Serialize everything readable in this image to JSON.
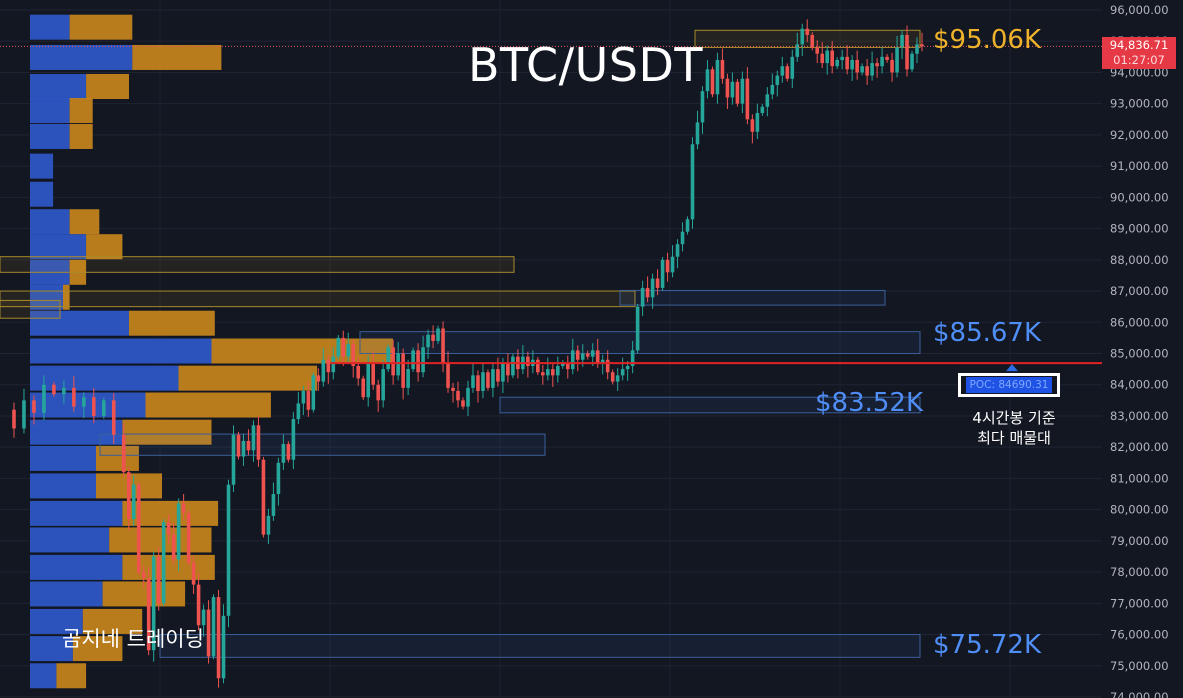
{
  "chart_data": {
    "type": "candlestick",
    "title": "BTC/USDT",
    "ylim": [
      73800,
      96200
    ],
    "y_ticks": [
      96000,
      95000,
      94000,
      93000,
      92000,
      91000,
      90000,
      89000,
      88000,
      87000,
      86000,
      85000,
      84000,
      83000,
      82000,
      81000,
      80000,
      79000,
      78000,
      77000,
      76000,
      75000,
      74000
    ],
    "y_tick_labels": [
      "96,000.00",
      "95,000.00",
      "94,000.00",
      "93,000.00",
      "92,000.00",
      "91,000.00",
      "90,000.00",
      "89,000.00",
      "88,000.00",
      "87,000.00",
      "86,000.00",
      "85,000.00",
      "84,000.00",
      "83,000.00",
      "82,000.00",
      "81,000.00",
      "80,000.00",
      "79,000.00",
      "78,000.00",
      "77,000.00",
      "76,000.00",
      "75,000.00",
      "74,000.00"
    ],
    "price_path": [
      [
        0,
        83200
      ],
      [
        10,
        82600
      ],
      [
        20,
        83500
      ],
      [
        30,
        83100
      ],
      [
        40,
        84000
      ],
      [
        50,
        83700
      ],
      [
        60,
        83900
      ],
      [
        70,
        83300
      ],
      [
        80,
        83600
      ],
      [
        90,
        83000
      ],
      [
        100,
        83500
      ],
      [
        110,
        82400
      ],
      [
        120,
        81200
      ],
      [
        125,
        79700
      ],
      [
        130,
        80800
      ],
      [
        135,
        78000
      ],
      [
        140,
        77800
      ],
      [
        145,
        75500
      ],
      [
        150,
        78500
      ],
      [
        155,
        77000
      ],
      [
        160,
        79600
      ],
      [
        165,
        79200
      ],
      [
        170,
        78400
      ],
      [
        175,
        80200
      ],
      [
        180,
        79900
      ],
      [
        185,
        78300
      ],
      [
        190,
        77600
      ],
      [
        195,
        76300
      ],
      [
        200,
        76800
      ],
      [
        205,
        75300
      ],
      [
        210,
        77200
      ],
      [
        215,
        74600
      ],
      [
        220,
        76600
      ],
      [
        225,
        80800
      ],
      [
        230,
        82400
      ],
      [
        235,
        81700
      ],
      [
        240,
        82200
      ],
      [
        245,
        81900
      ],
      [
        250,
        82700
      ],
      [
        255,
        81600
      ],
      [
        260,
        79200
      ],
      [
        265,
        79800
      ],
      [
        270,
        80500
      ],
      [
        275,
        81500
      ],
      [
        280,
        82100
      ],
      [
        285,
        81600
      ],
      [
        290,
        82900
      ],
      [
        295,
        83400
      ],
      [
        300,
        83800
      ],
      [
        305,
        83200
      ],
      [
        310,
        84300
      ],
      [
        315,
        84100
      ],
      [
        320,
        84800
      ],
      [
        325,
        84400
      ],
      [
        330,
        84900
      ],
      [
        335,
        85500
      ],
      [
        340,
        84900
      ],
      [
        345,
        85300
      ],
      [
        350,
        84600
      ],
      [
        355,
        84200
      ],
      [
        360,
        83600
      ],
      [
        365,
        84700
      ],
      [
        370,
        84000
      ],
      [
        375,
        83500
      ],
      [
        380,
        84500
      ],
      [
        385,
        85200
      ],
      [
        390,
        84300
      ],
      [
        395,
        85000
      ],
      [
        400,
        83900
      ],
      [
        405,
        84500
      ],
      [
        410,
        85100
      ],
      [
        415,
        84400
      ],
      [
        420,
        85200
      ],
      [
        425,
        85600
      ],
      [
        430,
        85400
      ],
      [
        435,
        85800
      ],
      [
        440,
        84700
      ],
      [
        445,
        83900
      ],
      [
        450,
        83800
      ],
      [
        455,
        83500
      ],
      [
        460,
        83300
      ],
      [
        465,
        83900
      ],
      [
        470,
        84300
      ],
      [
        475,
        83800
      ],
      [
        480,
        84400
      ],
      [
        485,
        83900
      ],
      [
        490,
        84500
      ],
      [
        495,
        84100
      ],
      [
        500,
        84700
      ],
      [
        505,
        84300
      ],
      [
        510,
        84900
      ],
      [
        515,
        84500
      ],
      [
        520,
        84900
      ],
      [
        525,
        84600
      ],
      [
        530,
        84800
      ],
      [
        535,
        84400
      ],
      [
        540,
        84300
      ],
      [
        545,
        84500
      ],
      [
        550,
        84300
      ],
      [
        555,
        84600
      ],
      [
        560,
        84700
      ],
      [
        565,
        84500
      ],
      [
        570,
        85100
      ],
      [
        575,
        84800
      ],
      [
        580,
        85000
      ],
      [
        585,
        84900
      ],
      [
        590,
        85100
      ],
      [
        595,
        84700
      ],
      [
        600,
        84800
      ],
      [
        605,
        84400
      ],
      [
        610,
        84100
      ],
      [
        615,
        84300
      ],
      [
        620,
        84500
      ],
      [
        625,
        84600
      ],
      [
        630,
        85100
      ],
      [
        635,
        86500
      ],
      [
        640,
        87100
      ],
      [
        645,
        86800
      ],
      [
        650,
        87400
      ],
      [
        655,
        87100
      ],
      [
        660,
        88000
      ],
      [
        665,
        87600
      ],
      [
        670,
        88100
      ],
      [
        675,
        88500
      ],
      [
        680,
        88900
      ],
      [
        685,
        89300
      ],
      [
        690,
        91700
      ],
      [
        695,
        92400
      ],
      [
        700,
        93400
      ],
      [
        705,
        94100
      ],
      [
        710,
        93300
      ],
      [
        715,
        94400
      ],
      [
        720,
        93800
      ],
      [
        725,
        93200
      ],
      [
        730,
        93700
      ],
      [
        735,
        93000
      ],
      [
        740,
        93800
      ],
      [
        745,
        92500
      ],
      [
        750,
        92100
      ],
      [
        755,
        92700
      ],
      [
        760,
        92900
      ],
      [
        765,
        93300
      ],
      [
        770,
        93600
      ],
      [
        775,
        93900
      ],
      [
        780,
        94200
      ],
      [
        785,
        93800
      ],
      [
        790,
        94500
      ],
      [
        795,
        94900
      ],
      [
        800,
        95400
      ],
      [
        805,
        95200
      ],
      [
        810,
        94800
      ],
      [
        815,
        94600
      ],
      [
        820,
        94300
      ],
      [
        825,
        94700
      ],
      [
        830,
        94200
      ],
      [
        835,
        94400
      ],
      [
        840,
        94500
      ],
      [
        845,
        94100
      ],
      [
        850,
        94400
      ],
      [
        855,
        94000
      ],
      [
        860,
        94200
      ],
      [
        865,
        93900
      ],
      [
        870,
        94300
      ],
      [
        875,
        94200
      ],
      [
        880,
        94500
      ],
      [
        885,
        94400
      ],
      [
        890,
        94000
      ],
      [
        895,
        94800
      ],
      [
        900,
        95200
      ],
      [
        905,
        94100
      ],
      [
        910,
        94600
      ],
      [
        915,
        94900
      ],
      [
        920,
        94837
      ]
    ],
    "volume_profile": [
      [
        95450,
        0.12,
        0.19
      ],
      [
        94480,
        0.31,
        0.27
      ],
      [
        93550,
        0.17,
        0.13
      ],
      [
        92780,
        0.12,
        0.07
      ],
      [
        91950,
        0.12,
        0.07
      ],
      [
        91000,
        0.07,
        0.0
      ],
      [
        90100,
        0.07,
        0.0
      ],
      [
        89220,
        0.12,
        0.09
      ],
      [
        88420,
        0.17,
        0.11
      ],
      [
        87600,
        0.12,
        0.05
      ],
      [
        86800,
        0.1,
        0.02
      ],
      [
        85970,
        0.3,
        0.26
      ],
      [
        85080,
        0.55,
        0.55
      ],
      [
        84210,
        0.45,
        0.42
      ],
      [
        83350,
        0.35,
        0.38
      ],
      [
        82480,
        0.28,
        0.27
      ],
      [
        81640,
        0.2,
        0.13
      ],
      [
        80760,
        0.2,
        0.2
      ],
      [
        79880,
        0.28,
        0.29
      ],
      [
        79030,
        0.24,
        0.31
      ],
      [
        78150,
        0.28,
        0.28
      ],
      [
        77300,
        0.22,
        0.25
      ],
      [
        76420,
        0.16,
        0.18
      ],
      [
        75550,
        0.13,
        0.15
      ],
      [
        74680,
        0.08,
        0.09
      ]
    ],
    "zones": [
      {
        "low": 94800,
        "high": 95350,
        "x0": 0.695,
        "x1": 0.92,
        "color": "gold"
      },
      {
        "low": 85000,
        "high": 85700,
        "x0": 0.36,
        "x1": 0.92,
        "color": "blue"
      },
      {
        "low": 83100,
        "high": 83600,
        "x0": 0.5,
        "x1": 0.92,
        "color": "blue"
      },
      {
        "low": 75270,
        "high": 76000,
        "x0": 0.16,
        "x1": 0.92,
        "color": "blue"
      },
      {
        "low": 87600,
        "high": 88100,
        "x0": 0.0,
        "x1": 0.514,
        "color": "gold"
      },
      {
        "low": 86500,
        "high": 87000,
        "x0": 0.0,
        "x1": 0.635,
        "color": "gold"
      },
      {
        "low": 86550,
        "high": 87020,
        "x0": 0.62,
        "x1": 0.885,
        "color": "blue"
      },
      {
        "low": 86130,
        "high": 86700,
        "x0": 0.0,
        "x1": 0.06,
        "color": "gold"
      },
      {
        "low": 81740,
        "high": 82420,
        "x0": 0.1,
        "x1": 0.545,
        "color": "blue"
      }
    ],
    "poc_price": 84690.31,
    "current_price": 94836.71,
    "annotations": {
      "level_95": "$95.06K",
      "level_85": "$85.67K",
      "level_83": "$83.52K",
      "level_75": "$75.72K"
    },
    "current_price_label": "94,836.71",
    "countdown": "01:27:07",
    "poc_label": "POC: 84690.31",
    "note_line1": "4시간봉 기준",
    "note_line2": "최다 매물대",
    "watermark": "곰지네 트레이딩",
    "colors": {
      "background": "#131722",
      "up": "#26a69a",
      "down": "#ef5350",
      "profile_blue": "#2c56c4",
      "profile_orange": "#c8851c",
      "poc_line": "#e02424",
      "gold_text": "#f0b22a",
      "blue_text": "#4f8df7"
    }
  }
}
